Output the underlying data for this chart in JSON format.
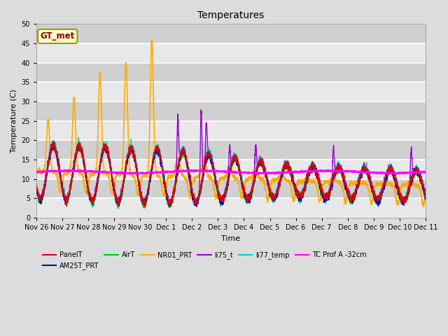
{
  "title": "Temperatures",
  "xlabel": "Time",
  "ylabel": "Temperature (C)",
  "ylim": [
    0,
    50
  ],
  "xlim": [
    0,
    15
  ],
  "fig_width": 6.4,
  "fig_height": 4.8,
  "dpi": 100,
  "background_color": "#dcdcdc",
  "plot_bg_color": "#dcdcdc",
  "grid_color": "white",
  "series": {
    "PanelT": {
      "color": "#dd0000",
      "lw": 1.0
    },
    "AM25T_PRT": {
      "color": "#0000bb",
      "lw": 1.0
    },
    "AirT": {
      "color": "#00cc00",
      "lw": 1.0
    },
    "NR01_PRT": {
      "color": "#ffaa00",
      "lw": 1.2
    },
    "li75_t": {
      "color": "#9900cc",
      "lw": 1.0
    },
    "li77_temp": {
      "color": "#00cccc",
      "lw": 1.0
    },
    "TC Prof A -32cm": {
      "color": "#ff00ff",
      "lw": 1.5
    }
  },
  "annotation_text": "GT_met",
  "annotation_color": "#8b0000",
  "annotation_bg": "#ffffcc",
  "annotation_edge": "#999900",
  "x_tick_labels": [
    "Nov 26",
    "Nov 27",
    "Nov 28",
    "Nov 29",
    "Nov 30",
    "Dec 1",
    "Dec 2",
    "Dec 3",
    "Dec 4",
    "Dec 5",
    "Dec 6",
    "Dec 7",
    "Dec 8",
    "Dec 9",
    "Dec 10",
    "Dec 11"
  ],
  "x_tick_positions": [
    0,
    1,
    2,
    3,
    4,
    5,
    6,
    7,
    8,
    9,
    10,
    11,
    12,
    13,
    14,
    15
  ],
  "yticks": [
    0,
    5,
    10,
    15,
    20,
    25,
    30,
    35,
    40,
    45,
    50
  ],
  "legend_order": [
    "PanelT",
    "AM25T_PRT",
    "AirT",
    "NR01_PRT",
    "li75_t",
    "li77_temp",
    "TC Prof A -32cm"
  ]
}
